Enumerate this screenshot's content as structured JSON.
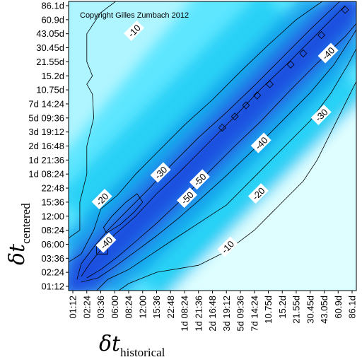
{
  "chart_data": {
    "type": "heatmap",
    "title": "",
    "copyright": "Copyright Gilles Zumbach 2012",
    "xlabel": {
      "symbol": "δt",
      "subscript": "historical"
    },
    "ylabel": {
      "symbol": "δt",
      "subscript": "centered"
    },
    "x_ticks": [
      "01:12",
      "02:24",
      "03:36",
      "06:00",
      "08:24",
      "12:00",
      "15:36",
      "22:48",
      "1d 08:24",
      "1d 21:36",
      "2d 16:48",
      "3d 19:12",
      "5d 09:36",
      "7d 14:24",
      "10.75d",
      "15.2d",
      "21.55d",
      "30.45d",
      "43.05d",
      "60.9d",
      "86.1d"
    ],
    "y_ticks": [
      "01:12",
      "02:24",
      "03:36",
      "06:00",
      "08:24",
      "12:00",
      "15:36",
      "22:48",
      "1d 08:24",
      "1d 21:36",
      "2d 16:48",
      "3d 19:12",
      "5d 09:36",
      "7d 14:24",
      "10.75d",
      "15.2d",
      "21.55d",
      "30.45d",
      "43.05d",
      "60.9d",
      "86.1d"
    ],
    "contour_labels": [
      {
        "text": "-20",
        "x": 20.5,
        "y": 21.2
      },
      {
        "text": "-10",
        "x": 4.4,
        "y": 18.2
      },
      {
        "text": "-40",
        "x": 18.3,
        "y": 16.6
      },
      {
        "text": "-30",
        "x": 17.8,
        "y": 12.2
      },
      {
        "text": "-40",
        "x": 13.5,
        "y": 10.2
      },
      {
        "text": "-30",
        "x": 6.3,
        "y": 8.1
      },
      {
        "text": "-50",
        "x": 9.1,
        "y": 7.6
      },
      {
        "text": "-50",
        "x": 8.2,
        "y": 6.3
      },
      {
        "text": "-20",
        "x": 2.1,
        "y": 6.2
      },
      {
        "text": "-20",
        "x": 13.3,
        "y": 6.6
      },
      {
        "text": "-40",
        "x": 2.4,
        "y": 3.1
      },
      {
        "text": "-10",
        "x": 11.1,
        "y": 2.8
      }
    ],
    "colormap": {
      "low": "#1f4fe0",
      "mid": "#18d4ff",
      "high": "#e8ffff"
    },
    "grid": false,
    "legend": "none"
  }
}
